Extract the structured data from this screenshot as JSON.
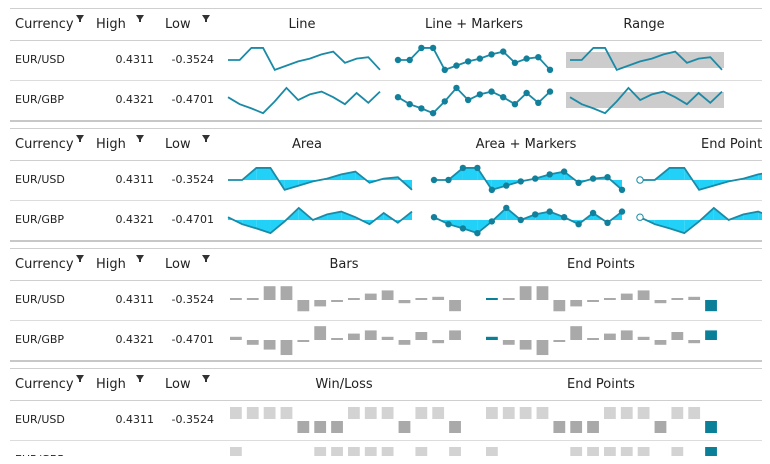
{
  "columns": {
    "currency": "Currency",
    "high": "High",
    "low": "Low"
  },
  "colors": {
    "line": "#1a8aa6",
    "marker": "#12809a",
    "area_fill": "#22d1f7",
    "range_band": "#cccccc",
    "bar_gray": "#a9a9a9",
    "bar_light": "#d3d3d3",
    "end_point": "#0a7f98"
  },
  "grids": [
    {
      "titles": [
        "Line",
        "Line + Markers",
        "Range"
      ],
      "rows": [
        {
          "currency": "EUR/USD",
          "high": "0.4311",
          "low": "-0.3524"
        },
        {
          "currency": "EUR/GBP",
          "high": "0.4321",
          "low": "-0.4701"
        }
      ]
    },
    {
      "titles": [
        "Area",
        "Area + Markers",
        "End Points"
      ],
      "rows": [
        {
          "currency": "EUR/USD",
          "high": "0.4311",
          "low": "-0.3524"
        },
        {
          "currency": "EUR/GBP",
          "high": "0.4321",
          "low": "-0.4701"
        }
      ]
    },
    {
      "titles": [
        "Bars",
        "End Points"
      ],
      "rows": [
        {
          "currency": "EUR/USD",
          "high": "0.4311",
          "low": "-0.3524"
        },
        {
          "currency": "EUR/GBP",
          "high": "0.4321",
          "low": "-0.4701"
        }
      ]
    },
    {
      "titles": [
        "Win/Loss",
        "End Points"
      ],
      "rows": [
        {
          "currency": "EUR/USD",
          "high": "0.4311",
          "low": "-0.3524"
        },
        {
          "currency": "EUR/GBP",
          "high": "",
          "low": ""
        }
      ]
    }
  ],
  "series": {
    "EUR/USD": [
      0.0,
      0.0,
      0.4311,
      0.4311,
      -0.3524,
      -0.2,
      -0.05,
      0.05,
      0.2,
      0.3,
      -0.1,
      0.05,
      0.1,
      -0.35
    ],
    "EUR/GBP": [
      0.1,
      -0.15,
      -0.3,
      -0.4701,
      -0.05,
      0.4321,
      0.0,
      0.2,
      0.3,
      0.1,
      -0.15,
      0.25,
      -0.1,
      0.3
    ]
  }
}
